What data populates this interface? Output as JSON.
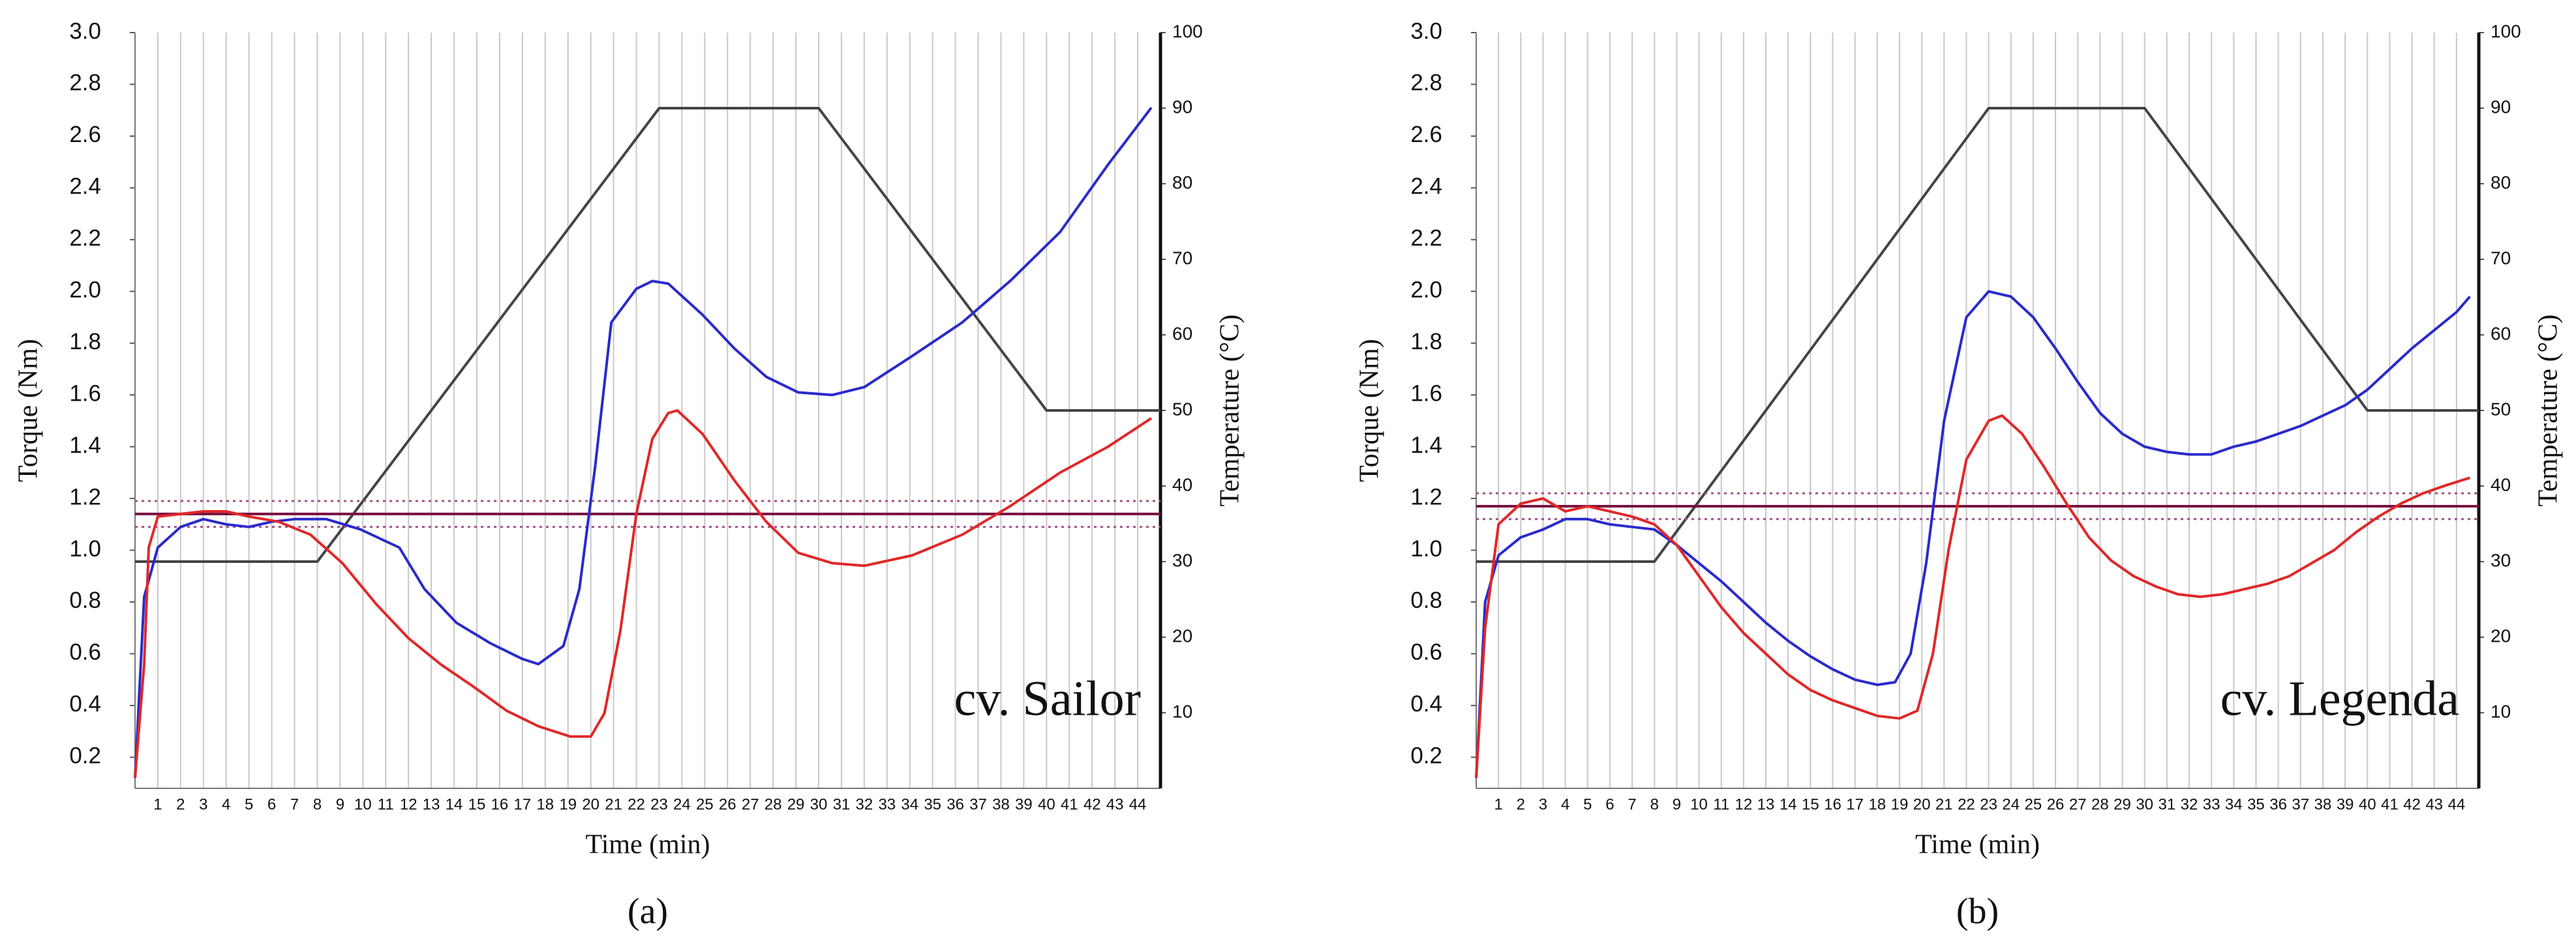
{
  "chart_data": [
    {
      "type": "line",
      "annotation": "cv. Sailor",
      "caption": "(a)",
      "xlabel": "Time (min)",
      "ylabel": "Torque  (Nm)",
      "y2label": "Temperature (°C)",
      "xlim": [
        0,
        45
      ],
      "xticks": [
        1,
        2,
        3,
        4,
        5,
        6,
        7,
        8,
        9,
        10,
        11,
        12,
        13,
        14,
        15,
        16,
        17,
        18,
        19,
        20,
        21,
        22,
        23,
        24,
        25,
        26,
        27,
        28,
        29,
        30,
        31,
        32,
        33,
        34,
        35,
        36,
        37,
        38,
        39,
        40,
        41,
        42,
        43,
        44
      ],
      "ylim": [
        0.08,
        3.0
      ],
      "yticks": [
        0.2,
        0.4,
        0.6,
        0.8,
        {
          "value": 1,
          "label": "1.0"
        },
        1.2,
        1.4,
        1.6,
        1.8,
        {
          "value": 2,
          "label": "2.0"
        },
        2.2,
        2.4,
        2.6,
        2.8,
        {
          "value": 3,
          "label": "3.0"
        }
      ],
      "y2lim": [
        0,
        100
      ],
      "y2ticks": [
        10,
        20,
        30,
        40,
        50,
        60,
        70,
        80,
        90,
        100
      ],
      "grid": true,
      "series": [
        {
          "color": "#444444",
          "axis": "y2",
          "x": [
            0,
            8,
            23,
            30,
            40,
            45
          ],
          "values": [
            30,
            30,
            90,
            90,
            50,
            50
          ]
        },
        {
          "color": "#a0508a",
          "linestyle": "dotted",
          "x": [
            0,
            45
          ],
          "values": [
            1.19,
            1.19
          ]
        },
        {
          "color": "#a0508a",
          "linestyle": "dotted",
          "x": [
            0,
            45
          ],
          "values": [
            1.09,
            1.09
          ]
        },
        {
          "color": "#7a1040",
          "x": [
            0,
            45
          ],
          "values": [
            1.14,
            1.14
          ]
        },
        {
          "color": "#2a2acc",
          "x": [
            0,
            0.4,
            1,
            2,
            3,
            4,
            5,
            6,
            7,
            8.4,
            9.9,
            11.6,
            12.7,
            14.1,
            15.6,
            17,
            17.7,
            18.8,
            19.5,
            20.2,
            20.9,
            22,
            22.7,
            23.4,
            24.9,
            26.3,
            27.7,
            29.1,
            30.6,
            32,
            34.1,
            36.3,
            38.4,
            40.6,
            42.7,
            44.6
          ],
          "values": [
            0.12,
            0.82,
            1.01,
            1.09,
            1.12,
            1.1,
            1.09,
            1.11,
            1.12,
            1.12,
            1.08,
            1.01,
            0.85,
            0.72,
            0.64,
            0.58,
            0.56,
            0.63,
            0.85,
            1.33,
            1.88,
            2.01,
            2.04,
            2.03,
            1.91,
            1.78,
            1.67,
            1.61,
            1.6,
            1.63,
            1.75,
            1.88,
            2.04,
            2.23,
            2.49,
            2.71
          ]
        },
        {
          "color": "#e02828",
          "x": [
            0,
            0.4,
            0.6,
            1,
            2,
            3,
            4,
            5,
            6.3,
            7.7,
            9.1,
            10.6,
            12,
            13.4,
            14.9,
            16.3,
            17.7,
            19.1,
            20,
            20.6,
            21.3,
            22,
            22.7,
            23.4,
            23.8,
            24.9,
            26.3,
            27.7,
            29.1,
            30.6,
            32,
            34.1,
            36.3,
            38.4,
            40.6,
            42.7,
            44.6
          ],
          "values": [
            0.12,
            0.56,
            1.01,
            1.13,
            1.14,
            1.15,
            1.15,
            1.13,
            1.11,
            1.06,
            0.95,
            0.79,
            0.66,
            0.56,
            0.47,
            0.38,
            0.32,
            0.28,
            0.28,
            0.37,
            0.69,
            1.14,
            1.43,
            1.53,
            1.54,
            1.45,
            1.27,
            1.11,
            0.99,
            0.95,
            0.94,
            0.98,
            1.06,
            1.17,
            1.3,
            1.4,
            1.51
          ]
        }
      ]
    },
    {
      "type": "line",
      "annotation": "cv. Legenda",
      "caption": "(b)",
      "xlabel": "Time (min)",
      "ylabel": "Torque  (Nm)",
      "y2label": "Temperature (°C)",
      "xlim": [
        0,
        45
      ],
      "xticks": [
        1,
        2,
        3,
        4,
        5,
        6,
        7,
        8,
        9,
        10,
        11,
        12,
        13,
        14,
        15,
        16,
        17,
        18,
        19,
        20,
        21,
        22,
        23,
        24,
        25,
        26,
        27,
        28,
        29,
        30,
        31,
        32,
        33,
        34,
        35,
        36,
        37,
        38,
        39,
        40,
        41,
        42,
        43,
        44
      ],
      "ylim": [
        0.08,
        3.0
      ],
      "yticks": [
        0.2,
        0.4,
        0.6,
        0.8,
        {
          "value": 1,
          "label": "1.0"
        },
        1.2,
        1.4,
        1.6,
        1.8,
        {
          "value": 2,
          "label": "2.0"
        },
        2.2,
        2.4,
        2.6,
        2.8,
        {
          "value": 3,
          "label": "3.0"
        }
      ],
      "y2lim": [
        0,
        100
      ],
      "y2ticks": [
        10,
        20,
        30,
        40,
        50,
        60,
        70,
        80,
        90,
        100
      ],
      "grid": true,
      "series": [
        {
          "color": "#444444",
          "axis": "y2",
          "x": [
            0,
            8,
            23,
            30,
            40,
            45
          ],
          "values": [
            30,
            30,
            90,
            90,
            50,
            50
          ]
        },
        {
          "color": "#a0508a",
          "linestyle": "dotted",
          "x": [
            0,
            45
          ],
          "values": [
            1.22,
            1.22
          ]
        },
        {
          "color": "#a0508a",
          "linestyle": "dotted",
          "x": [
            0,
            45
          ],
          "values": [
            1.12,
            1.12
          ]
        },
        {
          "color": "#7a1040",
          "x": [
            0,
            45
          ],
          "values": [
            1.17,
            1.17
          ]
        },
        {
          "color": "#2a2acc",
          "x": [
            0,
            0.4,
            1,
            2,
            3,
            4,
            5,
            6,
            7,
            8,
            9,
            10,
            11,
            12,
            13,
            14,
            15,
            16,
            17,
            18,
            18.8,
            19.5,
            20.2,
            21,
            22,
            23,
            24,
            25,
            26,
            27,
            28,
            29,
            30,
            31,
            32,
            33,
            34,
            35,
            36,
            37,
            38,
            39,
            40,
            41,
            42,
            43,
            44,
            44.6
          ],
          "values": [
            0.12,
            0.8,
            0.98,
            1.05,
            1.08,
            1.12,
            1.12,
            1.1,
            1.09,
            1.08,
            1.02,
            0.95,
            0.88,
            0.8,
            0.72,
            0.65,
            0.59,
            0.54,
            0.5,
            0.48,
            0.49,
            0.6,
            0.95,
            1.5,
            1.9,
            2.0,
            1.98,
            1.9,
            1.78,
            1.65,
            1.53,
            1.45,
            1.4,
            1.38,
            1.37,
            1.37,
            1.4,
            1.42,
            1.45,
            1.48,
            1.52,
            1.56,
            1.62,
            1.7,
            1.78,
            1.85,
            1.92,
            1.98
          ]
        },
        {
          "color": "#e02828",
          "x": [
            0,
            0.4,
            1,
            2,
            3,
            4,
            5,
            6,
            7,
            8,
            9,
            10,
            11,
            12,
            13,
            14,
            15,
            16,
            17,
            18,
            19,
            19.8,
            20.5,
            21.2,
            22,
            23,
            23.6,
            24.5,
            25.5,
            26.5,
            27.5,
            28.5,
            29.5,
            30.5,
            31.5,
            32.5,
            33.5,
            34.5,
            35.5,
            36.5,
            37.5,
            38.5,
            39.5,
            40.5,
            41.5,
            42.5,
            43.5,
            44.6
          ],
          "values": [
            0.12,
            0.7,
            1.1,
            1.18,
            1.2,
            1.15,
            1.17,
            1.15,
            1.13,
            1.1,
            1.02,
            0.9,
            0.78,
            0.68,
            0.6,
            0.52,
            0.46,
            0.42,
            0.39,
            0.36,
            0.35,
            0.38,
            0.6,
            1.0,
            1.35,
            1.5,
            1.52,
            1.45,
            1.32,
            1.18,
            1.05,
            0.96,
            0.9,
            0.86,
            0.83,
            0.82,
            0.83,
            0.85,
            0.87,
            0.9,
            0.95,
            1.0,
            1.07,
            1.13,
            1.18,
            1.22,
            1.25,
            1.28
          ]
        }
      ]
    }
  ]
}
